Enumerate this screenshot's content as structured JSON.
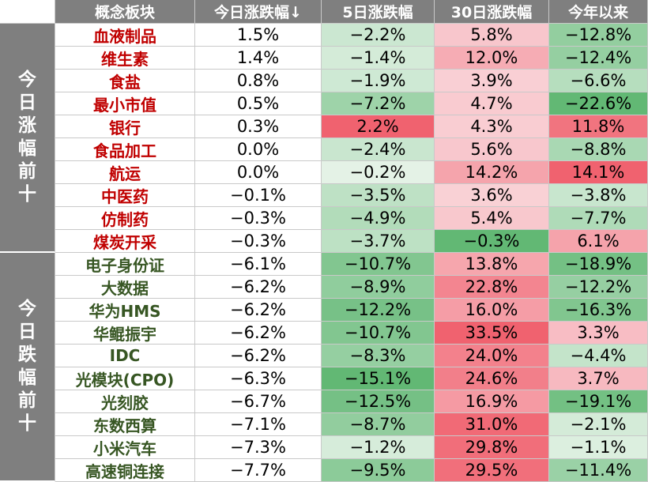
{
  "colors": {
    "header_bg": "#7f7f7f",
    "header_text": "#ffffff",
    "up_name": "#c00000",
    "down_name": "#375623",
    "pos_scale": [
      "#fbe7ea",
      "#f0626f"
    ],
    "neg_scale": [
      "#e8f4ea",
      "#62b874"
    ]
  },
  "chart_data": {
    "type": "table",
    "columns": [
      "概念板块",
      "今日涨跌幅↓",
      "5日涨跌幅",
      "30日涨跌幅",
      "今年以来"
    ],
    "value_unit": "%",
    "groups": [
      {
        "label": "今日涨幅前十",
        "rows": [
          {
            "name": "血液制品",
            "values": [
              1.5,
              -2.2,
              5.8,
              -12.8
            ]
          },
          {
            "name": "维生素",
            "values": [
              1.4,
              -1.4,
              12.0,
              -12.4
            ]
          },
          {
            "name": "食盐",
            "values": [
              0.8,
              -1.9,
              3.9,
              -6.6
            ]
          },
          {
            "name": "最小市值",
            "values": [
              0.5,
              -7.2,
              4.7,
              -22.6
            ]
          },
          {
            "name": "银行",
            "values": [
              0.3,
              2.2,
              4.3,
              11.8
            ]
          },
          {
            "name": "食品加工",
            "values": [
              0.0,
              -2.4,
              5.6,
              -8.8
            ]
          },
          {
            "name": "航运",
            "values": [
              0.0,
              -0.2,
              14.2,
              14.1
            ]
          },
          {
            "name": "中医药",
            "values": [
              -0.1,
              -3.5,
              3.6,
              -3.8
            ]
          },
          {
            "name": "仿制药",
            "values": [
              -0.3,
              -4.9,
              5.4,
              -7.7
            ]
          },
          {
            "name": "煤炭开采",
            "values": [
              -0.3,
              -3.7,
              -0.3,
              6.1
            ]
          }
        ]
      },
      {
        "label": "今日跌幅前十",
        "rows": [
          {
            "name": "电子身份证",
            "values": [
              -6.1,
              -10.7,
              13.8,
              -18.9
            ]
          },
          {
            "name": "大数据",
            "values": [
              -6.2,
              -8.9,
              22.8,
              -12.2
            ]
          },
          {
            "name": "华为HMS",
            "values": [
              -6.2,
              -12.2,
              16.0,
              -16.3
            ]
          },
          {
            "name": "华鲲振宇",
            "values": [
              -6.2,
              -10.7,
              33.5,
              3.3
            ]
          },
          {
            "name": "IDC",
            "values": [
              -6.2,
              -8.3,
              24.0,
              -4.4
            ]
          },
          {
            "name": "光模块(CPO)",
            "values": [
              -6.3,
              -15.1,
              24.6,
              3.7
            ]
          },
          {
            "name": "光刻胶",
            "values": [
              -6.7,
              -12.5,
              16.9,
              -19.1
            ]
          },
          {
            "name": "东数西算",
            "values": [
              -7.1,
              -8.7,
              31.0,
              -2.1
            ]
          },
          {
            "name": "小米汽车",
            "values": [
              -7.3,
              -1.2,
              29.8,
              -1.1
            ]
          },
          {
            "name": "高速铜连接",
            "values": [
              -7.7,
              -9.5,
              29.5,
              -11.4
            ]
          }
        ]
      }
    ]
  }
}
